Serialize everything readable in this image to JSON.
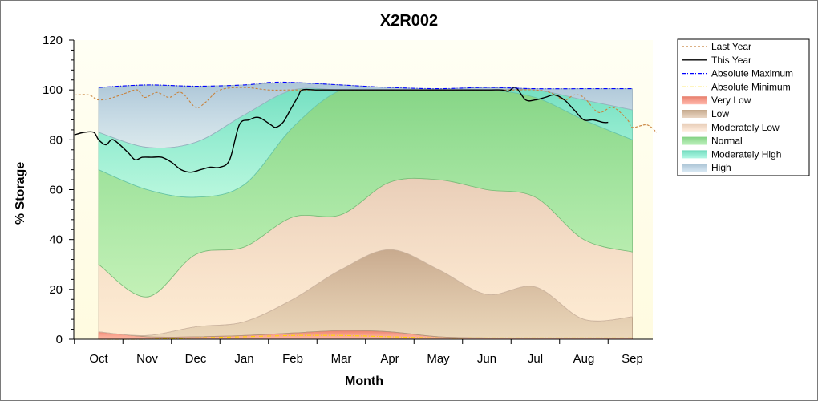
{
  "chart_data": {
    "type": "area",
    "title": "X2R002",
    "xlabel": "Month",
    "ylabel": "% Storage",
    "ylim": [
      0,
      120
    ],
    "yticks": [
      0,
      20,
      40,
      60,
      80,
      100,
      120
    ],
    "categories": [
      "Oct",
      "Nov",
      "Dec",
      "Jan",
      "Feb",
      "Mar",
      "Apr",
      "May",
      "Jun",
      "Jul",
      "Aug",
      "Sep"
    ],
    "legend_position": "top-right",
    "grid": false,
    "bands": [
      {
        "name": "Very Low",
        "color": "#ff8c78",
        "lower": [
          0,
          0,
          0,
          0,
          0,
          0,
          0,
          0,
          0,
          0,
          0,
          0
        ],
        "upper": [
          3,
          1,
          1,
          1.5,
          2.5,
          3.5,
          3,
          1,
          0.5,
          0.5,
          0.5,
          0.5
        ]
      },
      {
        "name": "Low",
        "color": "#d9b99a",
        "lower": [
          3,
          1,
          1,
          1.5,
          2.5,
          3.5,
          3,
          1,
          0.5,
          0.5,
          0.5,
          0.5
        ],
        "upper": [
          3,
          1.5,
          5,
          7,
          16,
          28,
          36,
          28,
          18,
          21,
          8,
          9
        ]
      },
      {
        "name": "Moderately Low",
        "color": "#fde0c8",
        "lower": [
          3,
          1.5,
          5,
          7,
          16,
          28,
          36,
          28,
          18,
          21,
          8,
          9
        ],
        "upper": [
          30,
          17,
          34,
          37,
          49,
          50,
          63,
          64,
          60,
          57,
          40,
          35
        ]
      },
      {
        "name": "Normal",
        "color": "#92e792",
        "lower": [
          30,
          17,
          34,
          37,
          49,
          50,
          63,
          64,
          60,
          57,
          40,
          35
        ],
        "upper": [
          68,
          60,
          57,
          62,
          85,
          100,
          100,
          100,
          100,
          97,
          88,
          80
        ]
      },
      {
        "name": "Moderately High",
        "color": "#7ff2d2",
        "lower": [
          68,
          60,
          57,
          62,
          85,
          100,
          100,
          100,
          100,
          97,
          88,
          80
        ],
        "upper": [
          83,
          77,
          79,
          90,
          100,
          100,
          100,
          100,
          100,
          100,
          96,
          92
        ]
      },
      {
        "name": "High",
        "color": "#bcd7ea",
        "lower": [
          83,
          77,
          79,
          90,
          100,
          100,
          100,
          100,
          100,
          100,
          96,
          92
        ],
        "upper": [
          101,
          102,
          101.5,
          102,
          103,
          102,
          101,
          100.5,
          101,
          100.5,
          100.5,
          100.5
        ]
      }
    ],
    "series": [
      {
        "name": "Last Year",
        "style": "dashed",
        "color": "#c8823c",
        "x": [
          -0.5,
          -0.2,
          0,
          0.3,
          0.6,
          0.8,
          0.95,
          1.2,
          1.45,
          1.7,
          2.0,
          2.2,
          2.5,
          3.0,
          3.5,
          4.0,
          5.0,
          6.0,
          7.0,
          8.0,
          8.5,
          9.0,
          9.3,
          9.6,
          9.8,
          10.0,
          10.3,
          10.6,
          10.9,
          11.0,
          11.3,
          11.5
        ],
        "y": [
          98,
          98,
          96,
          97,
          99,
          100,
          97,
          99,
          97,
          99,
          93,
          95,
          100,
          101,
          100,
          100,
          100,
          100,
          100,
          100,
          100,
          100,
          99,
          96,
          98,
          97,
          91,
          93,
          88,
          85,
          86,
          83
        ]
      },
      {
        "name": "This Year",
        "style": "solid",
        "color": "#000000",
        "x": [
          -0.5,
          -0.3,
          -0.1,
          0,
          0.15,
          0.3,
          0.6,
          0.75,
          0.9,
          1.1,
          1.3,
          1.5,
          1.7,
          1.9,
          2.1,
          2.3,
          2.5,
          2.7,
          2.9,
          3.1,
          3.3,
          3.55,
          3.65,
          3.8,
          3.95,
          4.1,
          4.2,
          4.5,
          5.0,
          6.0,
          7.0,
          8.0,
          8.3,
          8.45,
          8.6,
          8.8,
          9.0,
          9.2,
          9.4,
          9.6,
          9.8,
          10.0,
          10.2,
          10.4,
          10.5
        ],
        "y": [
          82,
          83,
          83,
          80,
          78,
          80,
          75,
          72,
          73,
          73,
          73,
          71,
          68,
          67,
          68,
          69,
          69,
          72,
          86,
          88,
          89,
          86,
          85,
          87,
          92,
          97,
          100,
          100,
          100,
          100,
          100,
          100,
          100,
          99.5,
          101,
          96,
          96,
          97,
          98,
          96,
          92,
          88,
          88,
          87,
          87
        ]
      },
      {
        "name": "Absolute Maximum",
        "style": "dashdot",
        "color": "#0000ff",
        "x": [
          0,
          1,
          2,
          3,
          3.5,
          4,
          5,
          6,
          7,
          8,
          9,
          10,
          11
        ],
        "y": [
          101,
          102,
          101.5,
          102,
          103,
          103,
          102,
          101,
          100.5,
          101,
          100.5,
          100.5,
          100.5
        ]
      },
      {
        "name": "Absolute Minimum",
        "style": "dashdot",
        "color": "#ffd700",
        "x": [
          0,
          1,
          2,
          3,
          4,
          5,
          6,
          7,
          8,
          9,
          10,
          11
        ],
        "y": [
          0,
          0,
          0.5,
          1,
          1.5,
          1.5,
          1,
          0.5,
          0.5,
          0.5,
          0.5,
          0.5
        ]
      }
    ],
    "legend": [
      {
        "label": "Last Year",
        "kind": "line",
        "style": "dashed",
        "color": "#c8823c"
      },
      {
        "label": "This Year",
        "kind": "line",
        "style": "solid",
        "color": "#000000"
      },
      {
        "label": "Absolute Maximum",
        "kind": "line",
        "style": "dashdot",
        "color": "#0000ff"
      },
      {
        "label": "Absolute Minimum",
        "kind": "line",
        "style": "dashdot",
        "color": "#ffd700"
      },
      {
        "label": "Very Low",
        "kind": "patch",
        "color": "#ff8c78"
      },
      {
        "label": "Low",
        "kind": "patch",
        "color": "#d9b99a"
      },
      {
        "label": "Moderately Low",
        "kind": "patch",
        "color": "#fde0c8"
      },
      {
        "label": "Normal",
        "kind": "patch",
        "color": "#92e792"
      },
      {
        "label": "Moderately High",
        "kind": "patch",
        "color": "#7ff2d2"
      },
      {
        "label": "High",
        "kind": "patch",
        "color": "#bcd7ea"
      }
    ]
  }
}
